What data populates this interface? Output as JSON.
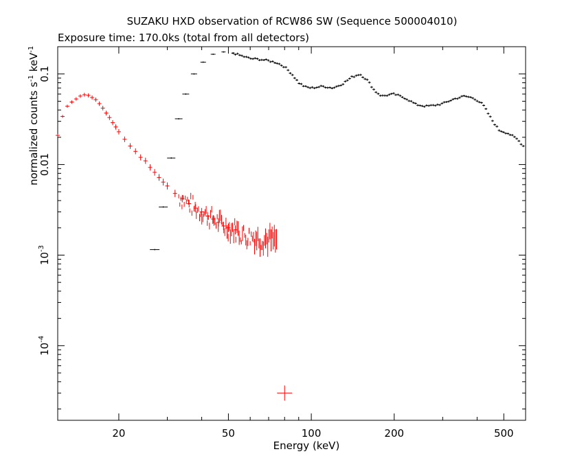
{
  "chart_data": {
    "type": "scatter",
    "title": "SUZAKU HXD observation of RCW86 SW (Sequence 500004010)",
    "subtitle": "Exposure time: 170.0ks (total from all detectors)",
    "xlabel": "Energy (keV)",
    "ylabel": "normalized counts s^-1 keV^-1",
    "ylabel_parts": [
      "normalized counts s",
      "-1",
      " keV",
      "-1"
    ],
    "x_scale": "log",
    "y_scale": "log",
    "xlim": [
      12,
      600
    ],
    "ylim": [
      1.5e-05,
      0.2
    ],
    "x_ticks": [
      20,
      50,
      100,
      200,
      500
    ],
    "x_tick_labels": [
      "20",
      "50",
      "100",
      "200",
      "500"
    ],
    "y_ticks": [
      0.1,
      0.01,
      0.001,
      0.0001
    ],
    "y_tick_labels": [
      "0.1",
      "0.01",
      "10^-3",
      "10^-4"
    ],
    "grid": false,
    "series": [
      {
        "color": "#ff0000",
        "x_range": [
          12,
          75
        ],
        "points": [
          [
            12.0,
            0.021
          ],
          [
            12.5,
            0.034
          ],
          [
            13.0,
            0.044
          ],
          [
            13.5,
            0.049
          ],
          [
            14.0,
            0.053
          ],
          [
            14.5,
            0.057
          ],
          [
            15.0,
            0.059
          ],
          [
            15.5,
            0.058
          ],
          [
            16.0,
            0.055
          ],
          [
            16.5,
            0.052
          ],
          [
            17.0,
            0.047
          ],
          [
            17.5,
            0.042
          ],
          [
            18.0,
            0.037
          ],
          [
            18.5,
            0.033
          ],
          [
            19.0,
            0.029
          ],
          [
            19.5,
            0.026
          ],
          [
            20.0,
            0.023
          ],
          [
            21.0,
            0.019
          ],
          [
            22.0,
            0.016
          ],
          [
            23.0,
            0.014
          ],
          [
            24.0,
            0.012
          ],
          [
            25.0,
            0.011
          ],
          [
            26.0,
            0.0093
          ],
          [
            27.0,
            0.0082
          ],
          [
            28.0,
            0.0072
          ],
          [
            29.0,
            0.0064
          ],
          [
            30.0,
            0.0058
          ],
          [
            32.0,
            0.0048
          ],
          [
            34.0,
            0.0042
          ],
          [
            36.0,
            0.0037
          ],
          [
            38.0,
            0.0033
          ],
          [
            40.0,
            0.003
          ],
          [
            42.0,
            0.0027
          ],
          [
            44.0,
            0.0025
          ],
          [
            46.0,
            0.0023
          ],
          [
            48.0,
            0.0021
          ],
          [
            50.0,
            0.002
          ],
          [
            53.0,
            0.0019
          ],
          [
            56.0,
            0.0017
          ],
          [
            59.0,
            0.0016
          ],
          [
            62.0,
            0.0016
          ],
          [
            65.0,
            0.0015
          ],
          [
            68.0,
            0.0015
          ],
          [
            71.0,
            0.0015
          ],
          [
            74.0,
            0.0014
          ]
        ],
        "outlier": [
          80,
          3e-05
        ]
      },
      {
        "color": "#000000",
        "x_range": [
          27,
          600
        ],
        "points": [
          [
            27.0,
            0.00115
          ],
          [
            29.0,
            0.0034
          ],
          [
            31.0,
            0.0118
          ],
          [
            33.0,
            0.032
          ],
          [
            35.0,
            0.06
          ],
          [
            37.5,
            0.1
          ],
          [
            40.5,
            0.135
          ],
          [
            44.0,
            0.165
          ],
          [
            48.0,
            0.175
          ],
          [
            52.0,
            0.17
          ],
          [
            56.0,
            0.158
          ],
          [
            60.0,
            0.148
          ],
          [
            65.0,
            0.145
          ],
          [
            70.0,
            0.14
          ],
          [
            75.0,
            0.133
          ],
          [
            80.0,
            0.12
          ],
          [
            85.0,
            0.1
          ],
          [
            90.0,
            0.08
          ],
          [
            95.0,
            0.072
          ],
          [
            100.0,
            0.07
          ],
          [
            110.0,
            0.073
          ],
          [
            120.0,
            0.07
          ],
          [
            130.0,
            0.078
          ],
          [
            140.0,
            0.092
          ],
          [
            150.0,
            0.1
          ],
          [
            160.0,
            0.085
          ],
          [
            170.0,
            0.065
          ],
          [
            180.0,
            0.057
          ],
          [
            200.0,
            0.06
          ],
          [
            220.0,
            0.054
          ],
          [
            240.0,
            0.046
          ],
          [
            260.0,
            0.044
          ],
          [
            280.0,
            0.045
          ],
          [
            300.0,
            0.047
          ],
          [
            330.0,
            0.053
          ],
          [
            360.0,
            0.057
          ],
          [
            390.0,
            0.054
          ],
          [
            420.0,
            0.046
          ],
          [
            450.0,
            0.032
          ],
          [
            480.0,
            0.024
          ],
          [
            520.0,
            0.022
          ],
          [
            560.0,
            0.019
          ],
          [
            600.0,
            0.015
          ]
        ]
      }
    ]
  }
}
